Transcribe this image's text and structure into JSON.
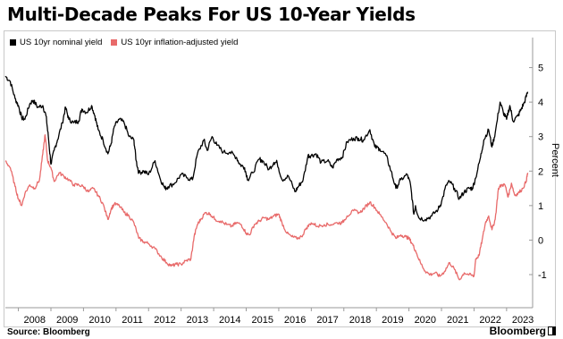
{
  "title": "Multi-Decade Peaks For US 10-Year Yields",
  "source": "Source: Bloomberg",
  "brand": "Bloomberg",
  "chart_data": {
    "type": "line",
    "title": "Multi-Decade Peaks For US 10-Year Yields",
    "xlabel": "",
    "ylabel": "Percent",
    "x_ticks": [
      "2008",
      "2009",
      "2010",
      "2011",
      "2012",
      "2013",
      "2014",
      "2015",
      "2016",
      "2017",
      "2018",
      "2019",
      "2020",
      "2021",
      "2022",
      "2023"
    ],
    "y_ticks": [
      5,
      4,
      3,
      2,
      1,
      0,
      -1
    ],
    "xlim": [
      2007.6,
      2023.8
    ],
    "ylim": [
      -1.7,
      5.3
    ],
    "grid": false,
    "legend": "top-left",
    "series": [
      {
        "name": "US 10yr nominal yield",
        "color": "#000000",
        "points": [
          [
            2007.6,
            4.75
          ],
          [
            2007.75,
            4.6
          ],
          [
            2007.9,
            4.1
          ],
          [
            2008.0,
            3.9
          ],
          [
            2008.1,
            3.55
          ],
          [
            2008.2,
            3.5
          ],
          [
            2008.35,
            3.95
          ],
          [
            2008.45,
            4.05
          ],
          [
            2008.6,
            3.85
          ],
          [
            2008.75,
            3.9
          ],
          [
            2008.85,
            3.6
          ],
          [
            2008.92,
            3.0
          ],
          [
            2009.0,
            2.2
          ],
          [
            2009.1,
            2.6
          ],
          [
            2009.2,
            2.9
          ],
          [
            2009.35,
            3.4
          ],
          [
            2009.45,
            3.85
          ],
          [
            2009.55,
            3.5
          ],
          [
            2009.7,
            3.4
          ],
          [
            2009.85,
            3.45
          ],
          [
            2009.95,
            3.8
          ],
          [
            2010.1,
            3.7
          ],
          [
            2010.25,
            3.9
          ],
          [
            2010.35,
            3.6
          ],
          [
            2010.45,
            3.2
          ],
          [
            2010.6,
            2.9
          ],
          [
            2010.75,
            2.5
          ],
          [
            2010.85,
            2.8
          ],
          [
            2010.95,
            3.3
          ],
          [
            2011.1,
            3.5
          ],
          [
            2011.25,
            3.4
          ],
          [
            2011.4,
            3.0
          ],
          [
            2011.55,
            2.9
          ],
          [
            2011.62,
            2.3
          ],
          [
            2011.7,
            1.95
          ],
          [
            2011.85,
            2.0
          ],
          [
            2012.0,
            1.9
          ],
          [
            2012.2,
            2.3
          ],
          [
            2012.35,
            1.8
          ],
          [
            2012.5,
            1.5
          ],
          [
            2012.6,
            1.55
          ],
          [
            2012.8,
            1.65
          ],
          [
            2013.0,
            1.9
          ],
          [
            2013.2,
            1.8
          ],
          [
            2013.35,
            1.75
          ],
          [
            2013.5,
            2.5
          ],
          [
            2013.7,
            2.9
          ],
          [
            2013.8,
            2.6
          ],
          [
            2013.95,
            3.0
          ],
          [
            2014.1,
            2.75
          ],
          [
            2014.3,
            2.55
          ],
          [
            2014.5,
            2.55
          ],
          [
            2014.7,
            2.4
          ],
          [
            2014.8,
            2.2
          ],
          [
            2014.95,
            2.1
          ],
          [
            2015.05,
            1.75
          ],
          [
            2015.2,
            1.95
          ],
          [
            2015.4,
            2.35
          ],
          [
            2015.5,
            2.3
          ],
          [
            2015.7,
            2.05
          ],
          [
            2015.85,
            2.25
          ],
          [
            2015.95,
            2.25
          ],
          [
            2016.1,
            1.75
          ],
          [
            2016.3,
            1.85
          ],
          [
            2016.5,
            1.4
          ],
          [
            2016.6,
            1.55
          ],
          [
            2016.75,
            1.75
          ],
          [
            2016.9,
            2.45
          ],
          [
            2017.0,
            2.45
          ],
          [
            2017.15,
            2.5
          ],
          [
            2017.3,
            2.25
          ],
          [
            2017.5,
            2.3
          ],
          [
            2017.65,
            2.1
          ],
          [
            2017.8,
            2.35
          ],
          [
            2017.95,
            2.4
          ],
          [
            2018.1,
            2.85
          ],
          [
            2018.3,
            2.95
          ],
          [
            2018.45,
            2.95
          ],
          [
            2018.6,
            2.9
          ],
          [
            2018.8,
            3.2
          ],
          [
            2018.95,
            2.7
          ],
          [
            2019.1,
            2.65
          ],
          [
            2019.3,
            2.45
          ],
          [
            2019.45,
            2.0
          ],
          [
            2019.6,
            1.5
          ],
          [
            2019.75,
            1.75
          ],
          [
            2019.95,
            1.9
          ],
          [
            2020.05,
            1.6
          ],
          [
            2020.15,
            0.75
          ],
          [
            2020.2,
            1.0
          ],
          [
            2020.3,
            0.65
          ],
          [
            2020.5,
            0.6
          ],
          [
            2020.7,
            0.7
          ],
          [
            2020.9,
            0.9
          ],
          [
            2021.0,
            1.1
          ],
          [
            2021.15,
            1.6
          ],
          [
            2021.25,
            1.7
          ],
          [
            2021.4,
            1.5
          ],
          [
            2021.55,
            1.2
          ],
          [
            2021.7,
            1.4
          ],
          [
            2021.85,
            1.5
          ],
          [
            2021.95,
            1.5
          ],
          [
            2022.05,
            1.8
          ],
          [
            2022.2,
            2.4
          ],
          [
            2022.3,
            2.9
          ],
          [
            2022.45,
            3.2
          ],
          [
            2022.55,
            2.7
          ],
          [
            2022.65,
            3.1
          ],
          [
            2022.8,
            4.0
          ],
          [
            2022.9,
            3.7
          ],
          [
            2023.0,
            3.5
          ],
          [
            2023.1,
            3.9
          ],
          [
            2023.2,
            3.45
          ],
          [
            2023.35,
            3.6
          ],
          [
            2023.45,
            3.8
          ],
          [
            2023.55,
            4.0
          ],
          [
            2023.65,
            4.3
          ]
        ]
      },
      {
        "name": "US 10yr inflation-adjusted yield",
        "color": "#e86a6a",
        "points": [
          [
            2007.6,
            2.3
          ],
          [
            2007.75,
            2.1
          ],
          [
            2007.9,
            1.55
          ],
          [
            2008.0,
            1.2
          ],
          [
            2008.1,
            1.0
          ],
          [
            2008.2,
            1.35
          ],
          [
            2008.35,
            1.6
          ],
          [
            2008.5,
            1.5
          ],
          [
            2008.65,
            1.75
          ],
          [
            2008.75,
            2.5
          ],
          [
            2008.82,
            3.05
          ],
          [
            2008.9,
            2.3
          ],
          [
            2009.0,
            2.1
          ],
          [
            2009.1,
            1.7
          ],
          [
            2009.25,
            1.95
          ],
          [
            2009.4,
            1.85
          ],
          [
            2009.55,
            1.75
          ],
          [
            2009.7,
            1.6
          ],
          [
            2009.85,
            1.6
          ],
          [
            2010.0,
            1.55
          ],
          [
            2010.15,
            1.4
          ],
          [
            2010.3,
            1.5
          ],
          [
            2010.45,
            1.3
          ],
          [
            2010.6,
            1.05
          ],
          [
            2010.75,
            0.6
          ],
          [
            2010.85,
            0.9
          ],
          [
            2010.95,
            1.05
          ],
          [
            2011.1,
            1.0
          ],
          [
            2011.25,
            0.8
          ],
          [
            2011.4,
            0.7
          ],
          [
            2011.55,
            0.5
          ],
          [
            2011.7,
            0.05
          ],
          [
            2011.85,
            -0.05
          ],
          [
            2012.0,
            -0.1
          ],
          [
            2012.2,
            -0.25
          ],
          [
            2012.4,
            -0.5
          ],
          [
            2012.55,
            -0.65
          ],
          [
            2012.7,
            -0.75
          ],
          [
            2012.85,
            -0.7
          ],
          [
            2013.0,
            -0.7
          ],
          [
            2013.15,
            -0.6
          ],
          [
            2013.3,
            -0.55
          ],
          [
            2013.4,
            0.1
          ],
          [
            2013.5,
            0.45
          ],
          [
            2013.6,
            0.6
          ],
          [
            2013.75,
            0.8
          ],
          [
            2013.9,
            0.75
          ],
          [
            2014.05,
            0.6
          ],
          [
            2014.2,
            0.55
          ],
          [
            2014.4,
            0.45
          ],
          [
            2014.55,
            0.4
          ],
          [
            2014.7,
            0.5
          ],
          [
            2014.85,
            0.45
          ],
          [
            2015.0,
            0.2
          ],
          [
            2015.1,
            0.15
          ],
          [
            2015.25,
            0.45
          ],
          [
            2015.4,
            0.55
          ],
          [
            2015.55,
            0.65
          ],
          [
            2015.7,
            0.6
          ],
          [
            2015.85,
            0.7
          ],
          [
            2016.0,
            0.75
          ],
          [
            2016.1,
            0.5
          ],
          [
            2016.25,
            0.2
          ],
          [
            2016.4,
            0.1
          ],
          [
            2016.55,
            0.05
          ],
          [
            2016.7,
            0.1
          ],
          [
            2016.85,
            0.35
          ],
          [
            2017.0,
            0.5
          ],
          [
            2017.2,
            0.4
          ],
          [
            2017.4,
            0.45
          ],
          [
            2017.6,
            0.45
          ],
          [
            2017.8,
            0.5
          ],
          [
            2017.95,
            0.5
          ],
          [
            2018.1,
            0.7
          ],
          [
            2018.3,
            0.85
          ],
          [
            2018.5,
            0.8
          ],
          [
            2018.65,
            0.95
          ],
          [
            2018.8,
            1.1
          ],
          [
            2018.95,
            0.95
          ],
          [
            2019.1,
            0.75
          ],
          [
            2019.3,
            0.5
          ],
          [
            2019.45,
            0.25
          ],
          [
            2019.6,
            0.05
          ],
          [
            2019.75,
            0.15
          ],
          [
            2019.9,
            0.1
          ],
          [
            2020.0,
            0.05
          ],
          [
            2020.1,
            -0.1
          ],
          [
            2020.2,
            -0.3
          ],
          [
            2020.35,
            -0.65
          ],
          [
            2020.5,
            -0.9
          ],
          [
            2020.65,
            -1.0
          ],
          [
            2020.8,
            -0.95
          ],
          [
            2020.95,
            -1.05
          ],
          [
            2021.1,
            -0.9
          ],
          [
            2021.25,
            -0.65
          ],
          [
            2021.4,
            -0.85
          ],
          [
            2021.55,
            -1.15
          ],
          [
            2021.7,
            -0.95
          ],
          [
            2021.85,
            -1.0
          ],
          [
            2022.0,
            -1.05
          ],
          [
            2022.05,
            -0.55
          ],
          [
            2022.15,
            -0.45
          ],
          [
            2022.25,
            0.0
          ],
          [
            2022.35,
            0.5
          ],
          [
            2022.45,
            0.7
          ],
          [
            2022.55,
            0.3
          ],
          [
            2022.65,
            0.6
          ],
          [
            2022.75,
            1.5
          ],
          [
            2022.85,
            1.6
          ],
          [
            2022.95,
            1.6
          ],
          [
            2023.05,
            1.25
          ],
          [
            2023.15,
            1.65
          ],
          [
            2023.25,
            1.3
          ],
          [
            2023.35,
            1.35
          ],
          [
            2023.5,
            1.5
          ],
          [
            2023.6,
            1.7
          ],
          [
            2023.65,
            1.95
          ]
        ]
      }
    ]
  }
}
